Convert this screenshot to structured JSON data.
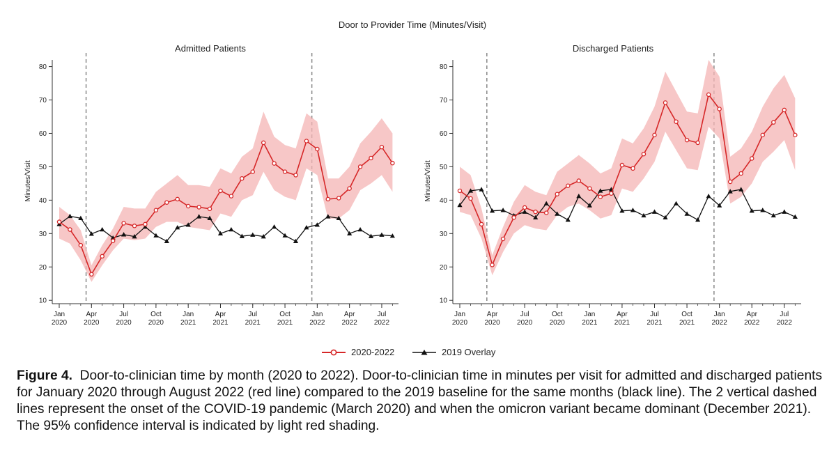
{
  "figure": {
    "super_title": "Door to Provider Time (Minutes/Visit)",
    "caption_label": "Figure 4.",
    "caption_text": "Door-to-clinician time by month (2020 to 2022). Door-to-clinician time in minutes per visit for admitted and discharged patients for January 2020 through August 2022 (red line) compared to the 2019 baseline for the same months (black line). The 2 vertical dashed lines represent the onset of the COVID-19 pandemic (March 2020) and when the omicron variant became dominant (December 2021). The 95% confidence interval is indicated by light red shading.",
    "legend": [
      {
        "name": "2020-2022",
        "color": "#d62728",
        "marker": "circle"
      },
      {
        "name": "2019 Overlay",
        "color": "#111111",
        "marker": "triangle"
      }
    ]
  },
  "chart_data": [
    {
      "type": "line",
      "title": "Admitted Patients",
      "xlabel": "",
      "ylabel": "Minutes/Visit",
      "ylim": [
        9,
        82
      ],
      "yticks": [
        10,
        20,
        30,
        40,
        50,
        60,
        70,
        80
      ],
      "x": [
        0,
        1,
        2,
        3,
        4,
        5,
        6,
        7,
        8,
        9,
        10,
        11,
        12,
        13,
        14,
        15,
        16,
        17,
        18,
        19,
        20,
        21,
        22,
        23,
        24,
        25,
        26,
        27,
        28,
        29,
        30,
        31
      ],
      "xlim": [
        0,
        31.3
      ],
      "xticks": [
        {
          "x": 0,
          "line1": "Jan",
          "line2": "2020"
        },
        {
          "x": 3,
          "line1": "Apr",
          "line2": "2020"
        },
        {
          "x": 6,
          "line1": "Jul",
          "line2": "2020"
        },
        {
          "x": 9,
          "line1": "Oct",
          "line2": "2020"
        },
        {
          "x": 12,
          "line1": "Jan",
          "line2": "2021"
        },
        {
          "x": 15,
          "line1": "Apr",
          "line2": "2021"
        },
        {
          "x": 18,
          "line1": "Jul",
          "line2": "2021"
        },
        {
          "x": 21,
          "line1": "Oct",
          "line2": "2021"
        },
        {
          "x": 24,
          "line1": "Jan",
          "line2": "2022"
        },
        {
          "x": 27,
          "line1": "Apr",
          "line2": "2022"
        },
        {
          "x": 30,
          "line1": "Jul",
          "line2": "2022"
        }
      ],
      "vlines": [
        2,
        23
      ],
      "series": [
        {
          "name": "2020-2022",
          "color": "#d62728",
          "values": [
            33.5,
            31.2,
            26.5,
            17.8,
            23.2,
            27.8,
            33.1,
            32.3,
            32.8,
            37.0,
            39.3,
            40.3,
            38.2,
            37.9,
            37.4,
            42.8,
            41.2,
            46.5,
            48.5,
            57.2,
            51.0,
            48.5,
            47.5,
            57.7,
            55.3,
            40.3,
            40.6,
            43.5,
            50.0,
            52.6,
            55.9,
            51.1
          ],
          "ci_lower": [
            28.5,
            27.0,
            22.0,
            15.5,
            20.5,
            25.0,
            28.5,
            28.0,
            28.5,
            32.0,
            33.5,
            33.5,
            32.0,
            31.5,
            31.0,
            36.0,
            35.0,
            40.0,
            41.5,
            48.5,
            43.0,
            41.0,
            40.0,
            49.5,
            47.5,
            34.5,
            34.5,
            37.0,
            43.0,
            45.0,
            47.5,
            42.5
          ],
          "ci_upper": [
            38.0,
            35.5,
            31.0,
            20.5,
            26.5,
            31.5,
            38.0,
            37.5,
            37.5,
            42.5,
            45.0,
            47.5,
            44.5,
            44.5,
            44.0,
            49.5,
            48.0,
            53.0,
            55.5,
            66.5,
            59.0,
            56.5,
            55.5,
            66.0,
            63.5,
            46.5,
            46.5,
            50.0,
            57.0,
            60.5,
            64.5,
            60.0
          ]
        },
        {
          "name": "2019 Overlay",
          "color": "#111111",
          "values": [
            32.8,
            35.2,
            34.6,
            29.9,
            31.2,
            28.7,
            29.7,
            29.1,
            32.0,
            29.4,
            27.7,
            31.8,
            32.6,
            35.1,
            34.6,
            30.0,
            31.2,
            29.2,
            29.6,
            29.1,
            32.0,
            29.4,
            27.7,
            31.8,
            32.6,
            35.1,
            34.6,
            30.0,
            31.2,
            29.2,
            29.6,
            29.3
          ]
        }
      ]
    },
    {
      "type": "line",
      "title": "Discharged Patients",
      "xlabel": "",
      "ylabel": "Minutes/Visit",
      "ylim": [
        9,
        82
      ],
      "yticks": [
        10,
        20,
        30,
        40,
        50,
        60,
        70,
        80
      ],
      "x": [
        0,
        1,
        2,
        3,
        4,
        5,
        6,
        7,
        8,
        9,
        10,
        11,
        12,
        13,
        14,
        15,
        16,
        17,
        18,
        19,
        20,
        21,
        22,
        23,
        24,
        25,
        26,
        27,
        28,
        29,
        30,
        31
      ],
      "xlim": [
        0,
        31.3
      ],
      "xticks": [
        {
          "x": 0,
          "line1": "Jan",
          "line2": "2020"
        },
        {
          "x": 3,
          "line1": "Apr",
          "line2": "2020"
        },
        {
          "x": 6,
          "line1": "Jul",
          "line2": "2020"
        },
        {
          "x": 9,
          "line1": "Oct",
          "line2": "2020"
        },
        {
          "x": 12,
          "line1": "Jan",
          "line2": "2021"
        },
        {
          "x": 15,
          "line1": "Apr",
          "line2": "2021"
        },
        {
          "x": 18,
          "line1": "Jul",
          "line2": "2021"
        },
        {
          "x": 21,
          "line1": "Oct",
          "line2": "2021"
        },
        {
          "x": 24,
          "line1": "Jan",
          "line2": "2022"
        },
        {
          "x": 27,
          "line1": "Apr",
          "line2": "2022"
        },
        {
          "x": 30,
          "line1": "Jul",
          "line2": "2022"
        }
      ],
      "vlines": [
        2,
        23
      ],
      "series": [
        {
          "name": "2020-2022",
          "color": "#d62728",
          "values": [
            42.8,
            40.5,
            32.8,
            20.6,
            28.4,
            34.8,
            37.8,
            36.5,
            36.2,
            41.8,
            44.3,
            45.8,
            43.5,
            41.0,
            42.0,
            50.5,
            49.5,
            53.8,
            59.5,
            69.2,
            63.5,
            58.0,
            57.2,
            71.6,
            67.3,
            45.5,
            48.0,
            52.5,
            59.5,
            63.3,
            67.0,
            59.5
          ],
          "ci_lower": [
            36.5,
            35.5,
            28.5,
            17.5,
            24.5,
            30.0,
            32.5,
            31.5,
            31.0,
            35.5,
            38.0,
            39.0,
            37.0,
            34.5,
            35.5,
            43.5,
            42.5,
            46.5,
            51.5,
            60.5,
            55.0,
            49.5,
            49.0,
            62.0,
            58.5,
            39.0,
            41.0,
            45.0,
            51.5,
            54.5,
            58.0,
            49.0
          ],
          "ci_upper": [
            50.0,
            47.5,
            37.5,
            23.5,
            32.0,
            39.5,
            44.5,
            42.5,
            41.5,
            48.5,
            51.0,
            53.5,
            51.0,
            48.0,
            49.5,
            58.5,
            57.0,
            61.5,
            68.0,
            78.5,
            72.5,
            66.5,
            66.0,
            82.0,
            77.0,
            53.0,
            55.5,
            60.5,
            68.0,
            73.5,
            77.5,
            70.5
          ]
        },
        {
          "name": "2019 Overlay",
          "color": "#111111",
          "values": [
            38.5,
            42.8,
            43.2,
            36.8,
            37.0,
            35.4,
            36.5,
            34.8,
            39.0,
            35.9,
            34.1,
            41.2,
            38.4,
            42.8,
            43.2,
            36.8,
            37.0,
            35.4,
            36.5,
            34.8,
            39.0,
            35.9,
            34.1,
            41.2,
            38.4,
            42.6,
            43.2,
            36.8,
            37.0,
            35.4,
            36.5,
            35.0
          ]
        }
      ]
    }
  ]
}
